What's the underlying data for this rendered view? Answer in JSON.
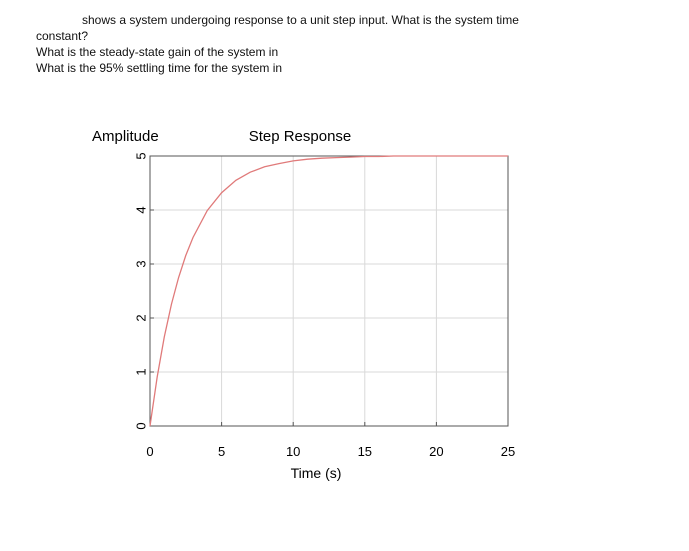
{
  "question": {
    "line1": "shows a system undergoing response to a unit step input. What is the system time",
    "line2": "constant?",
    "line3": "What is the steady-state gain of the system in",
    "line4": "What is the 95% settling time for the system in"
  },
  "colors": {
    "curve": "#e07a7a",
    "grid": "#d9d9d9",
    "axes": "#555555"
  },
  "chart_data": {
    "type": "line",
    "title": "Step Response",
    "ylabel": "Amplitude",
    "xlabel": "Time (s)",
    "xlim": [
      0,
      25
    ],
    "ylim": [
      0,
      5
    ],
    "xticks": [
      "0",
      "5",
      "10",
      "15",
      "20",
      "25"
    ],
    "yticks": [
      "0",
      "1",
      "2",
      "3",
      "4",
      "5"
    ],
    "grid": true,
    "series": [
      {
        "x": [
          0,
          0.5,
          1,
          1.5,
          2,
          2.5,
          3,
          4,
          5,
          6,
          7,
          8,
          9,
          10,
          11,
          12,
          13,
          14,
          15,
          16,
          17,
          18,
          19,
          20,
          21,
          22,
          23,
          24,
          25
        ],
        "values": [
          0,
          0.91,
          1.65,
          2.26,
          2.75,
          3.16,
          3.49,
          3.99,
          4.32,
          4.55,
          4.7,
          4.8,
          4.86,
          4.91,
          4.94,
          4.96,
          4.97,
          4.98,
          4.99,
          4.99,
          5.0,
          5.0,
          5.0,
          5.0,
          5.0,
          5.0,
          5.0,
          5.0,
          5.0
        ]
      }
    ]
  }
}
